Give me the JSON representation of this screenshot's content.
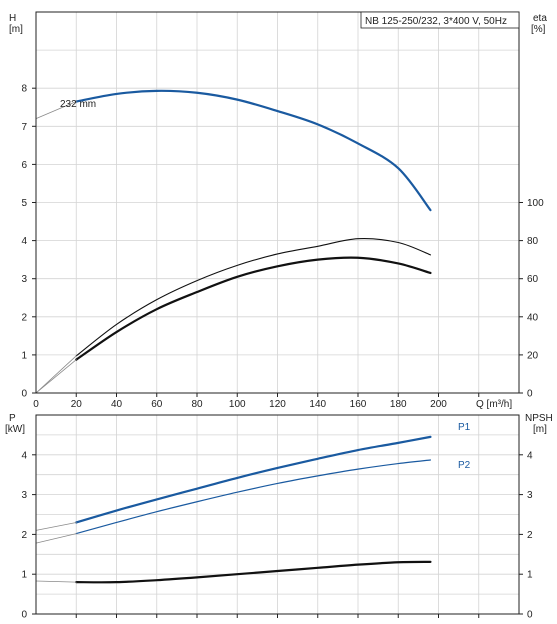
{
  "colors": {
    "grid": "#d4d4d4",
    "axis": "#222222",
    "curve_blue": "#1a5aa0",
    "curve_dark": "#111111",
    "curve_light": "#8a8a8a"
  },
  "chart_data": [
    {
      "type": "line",
      "title": "NB 125-250/232, 3*400 V, 50Hz",
      "xlabel": "Q [m³/h]",
      "x_ticks": [
        "0",
        "20",
        "40",
        "60",
        "80",
        "100",
        "120",
        "140",
        "160",
        "180",
        "200"
      ],
      "xlim": [
        0,
        240
      ],
      "ylabel_left": [
        "H",
        "[m]"
      ],
      "y_ticks_left": [
        "0",
        "1",
        "2",
        "3",
        "4",
        "5",
        "6",
        "7",
        "8"
      ],
      "ylim_left": [
        0,
        10
      ],
      "ylabel_right": [
        "eta",
        "[%]"
      ],
      "y_ticks_right": [
        "0",
        "20",
        "40",
        "60",
        "80",
        "100"
      ],
      "ylim_right": [
        0,
        200
      ],
      "grid": true,
      "annotations": [
        "232 mm"
      ],
      "series": [
        {
          "axis": "left",
          "style": "blue",
          "x": [
            20,
            40,
            60,
            80,
            100,
            120,
            140,
            160,
            180,
            196
          ],
          "y": [
            7.65,
            7.85,
            7.93,
            7.88,
            7.7,
            7.4,
            7.05,
            6.55,
            5.9,
            4.8
          ]
        },
        {
          "axis": "left",
          "style": "light",
          "x": [
            0,
            20
          ],
          "y": [
            7.2,
            7.65
          ]
        },
        {
          "axis": "right",
          "style": "dark-thin",
          "x": [
            20,
            40,
            60,
            80,
            100,
            120,
            140,
            160,
            180,
            196
          ],
          "y": [
            19.5,
            36,
            49,
            59,
            67,
            73,
            77,
            81,
            79,
            72.5
          ]
        },
        {
          "axis": "right",
          "style": "light",
          "x": [
            0,
            20
          ],
          "y": [
            0,
            19.5
          ]
        },
        {
          "axis": "right",
          "style": "dark-bold",
          "x": [
            20,
            40,
            60,
            80,
            100,
            120,
            140,
            160,
            180,
            196
          ],
          "y": [
            17.5,
            32,
            44,
            53,
            61,
            66.5,
            70,
            71,
            68,
            63
          ]
        },
        {
          "axis": "right",
          "style": "light",
          "x": [
            0,
            20
          ],
          "y": [
            0,
            17.5
          ]
        }
      ]
    },
    {
      "type": "line",
      "ylabel_left": [
        "P",
        "[kW]"
      ],
      "y_ticks_left": [
        "0",
        "1",
        "2",
        "3",
        "4"
      ],
      "ylim_left": [
        0,
        5
      ],
      "ylabel_right": [
        "NPSH",
        "[m]"
      ],
      "y_ticks_right": [
        "0",
        "1",
        "2",
        "3",
        "4"
      ],
      "ylim_right": [
        0,
        5
      ],
      "xlim": [
        0,
        240
      ],
      "grid": true,
      "series": [
        {
          "name": "P1",
          "axis": "left",
          "style": "blue",
          "x": [
            20,
            40,
            60,
            80,
            100,
            120,
            140,
            160,
            180,
            196
          ],
          "y": [
            2.3,
            2.6,
            2.88,
            3.15,
            3.42,
            3.67,
            3.9,
            4.12,
            4.3,
            4.45
          ]
        },
        {
          "axis": "left",
          "style": "light",
          "x": [
            0,
            20
          ],
          "y": [
            2.1,
            2.3
          ]
        },
        {
          "name": "P2",
          "axis": "left",
          "style": "blue-thin",
          "x": [
            20,
            40,
            60,
            80,
            100,
            120,
            140,
            160,
            180,
            196
          ],
          "y": [
            2.02,
            2.3,
            2.57,
            2.82,
            3.06,
            3.28,
            3.47,
            3.64,
            3.78,
            3.87
          ]
        },
        {
          "axis": "left",
          "style": "light",
          "x": [
            0,
            20
          ],
          "y": [
            1.78,
            2.02
          ]
        },
        {
          "axis": "right",
          "style": "dark-bold",
          "x": [
            20,
            40,
            60,
            80,
            100,
            120,
            140,
            160,
            180,
            196
          ],
          "y": [
            0.8,
            0.8,
            0.85,
            0.92,
            1.0,
            1.08,
            1.16,
            1.24,
            1.3,
            1.31
          ]
        },
        {
          "axis": "right",
          "style": "light",
          "x": [
            0,
            20
          ],
          "y": [
            0.83,
            0.8
          ]
        }
      ]
    }
  ]
}
